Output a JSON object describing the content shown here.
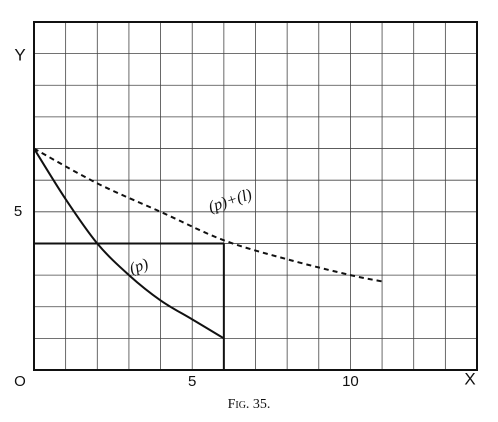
{
  "chart_data": {
    "type": "line",
    "title": "Fig. 35.",
    "xlabel": "X",
    "ylabel": "Y",
    "xlim": [
      0,
      14
    ],
    "ylim": [
      0,
      11
    ],
    "xticks": [
      {
        "value": 0,
        "label": "O"
      },
      5,
      10
    ],
    "yticks": [
      5
    ],
    "grid": true,
    "series": [
      {
        "name": "(p)",
        "color": "#111",
        "dashed": false,
        "x": [
          0,
          1,
          2,
          3,
          4,
          5,
          6
        ],
        "values": [
          7,
          5.4,
          4,
          3,
          2.2,
          1.6,
          1
        ]
      },
      {
        "name": "(p)+(l)",
        "color": "#111",
        "dashed": true,
        "x": [
          0,
          2,
          4,
          6,
          8,
          10,
          11
        ],
        "values": [
          7,
          5.9,
          5,
          4.1,
          3.5,
          3,
          2.8
        ]
      }
    ],
    "rectangle": {
      "x": 6,
      "y": 4
    }
  }
}
